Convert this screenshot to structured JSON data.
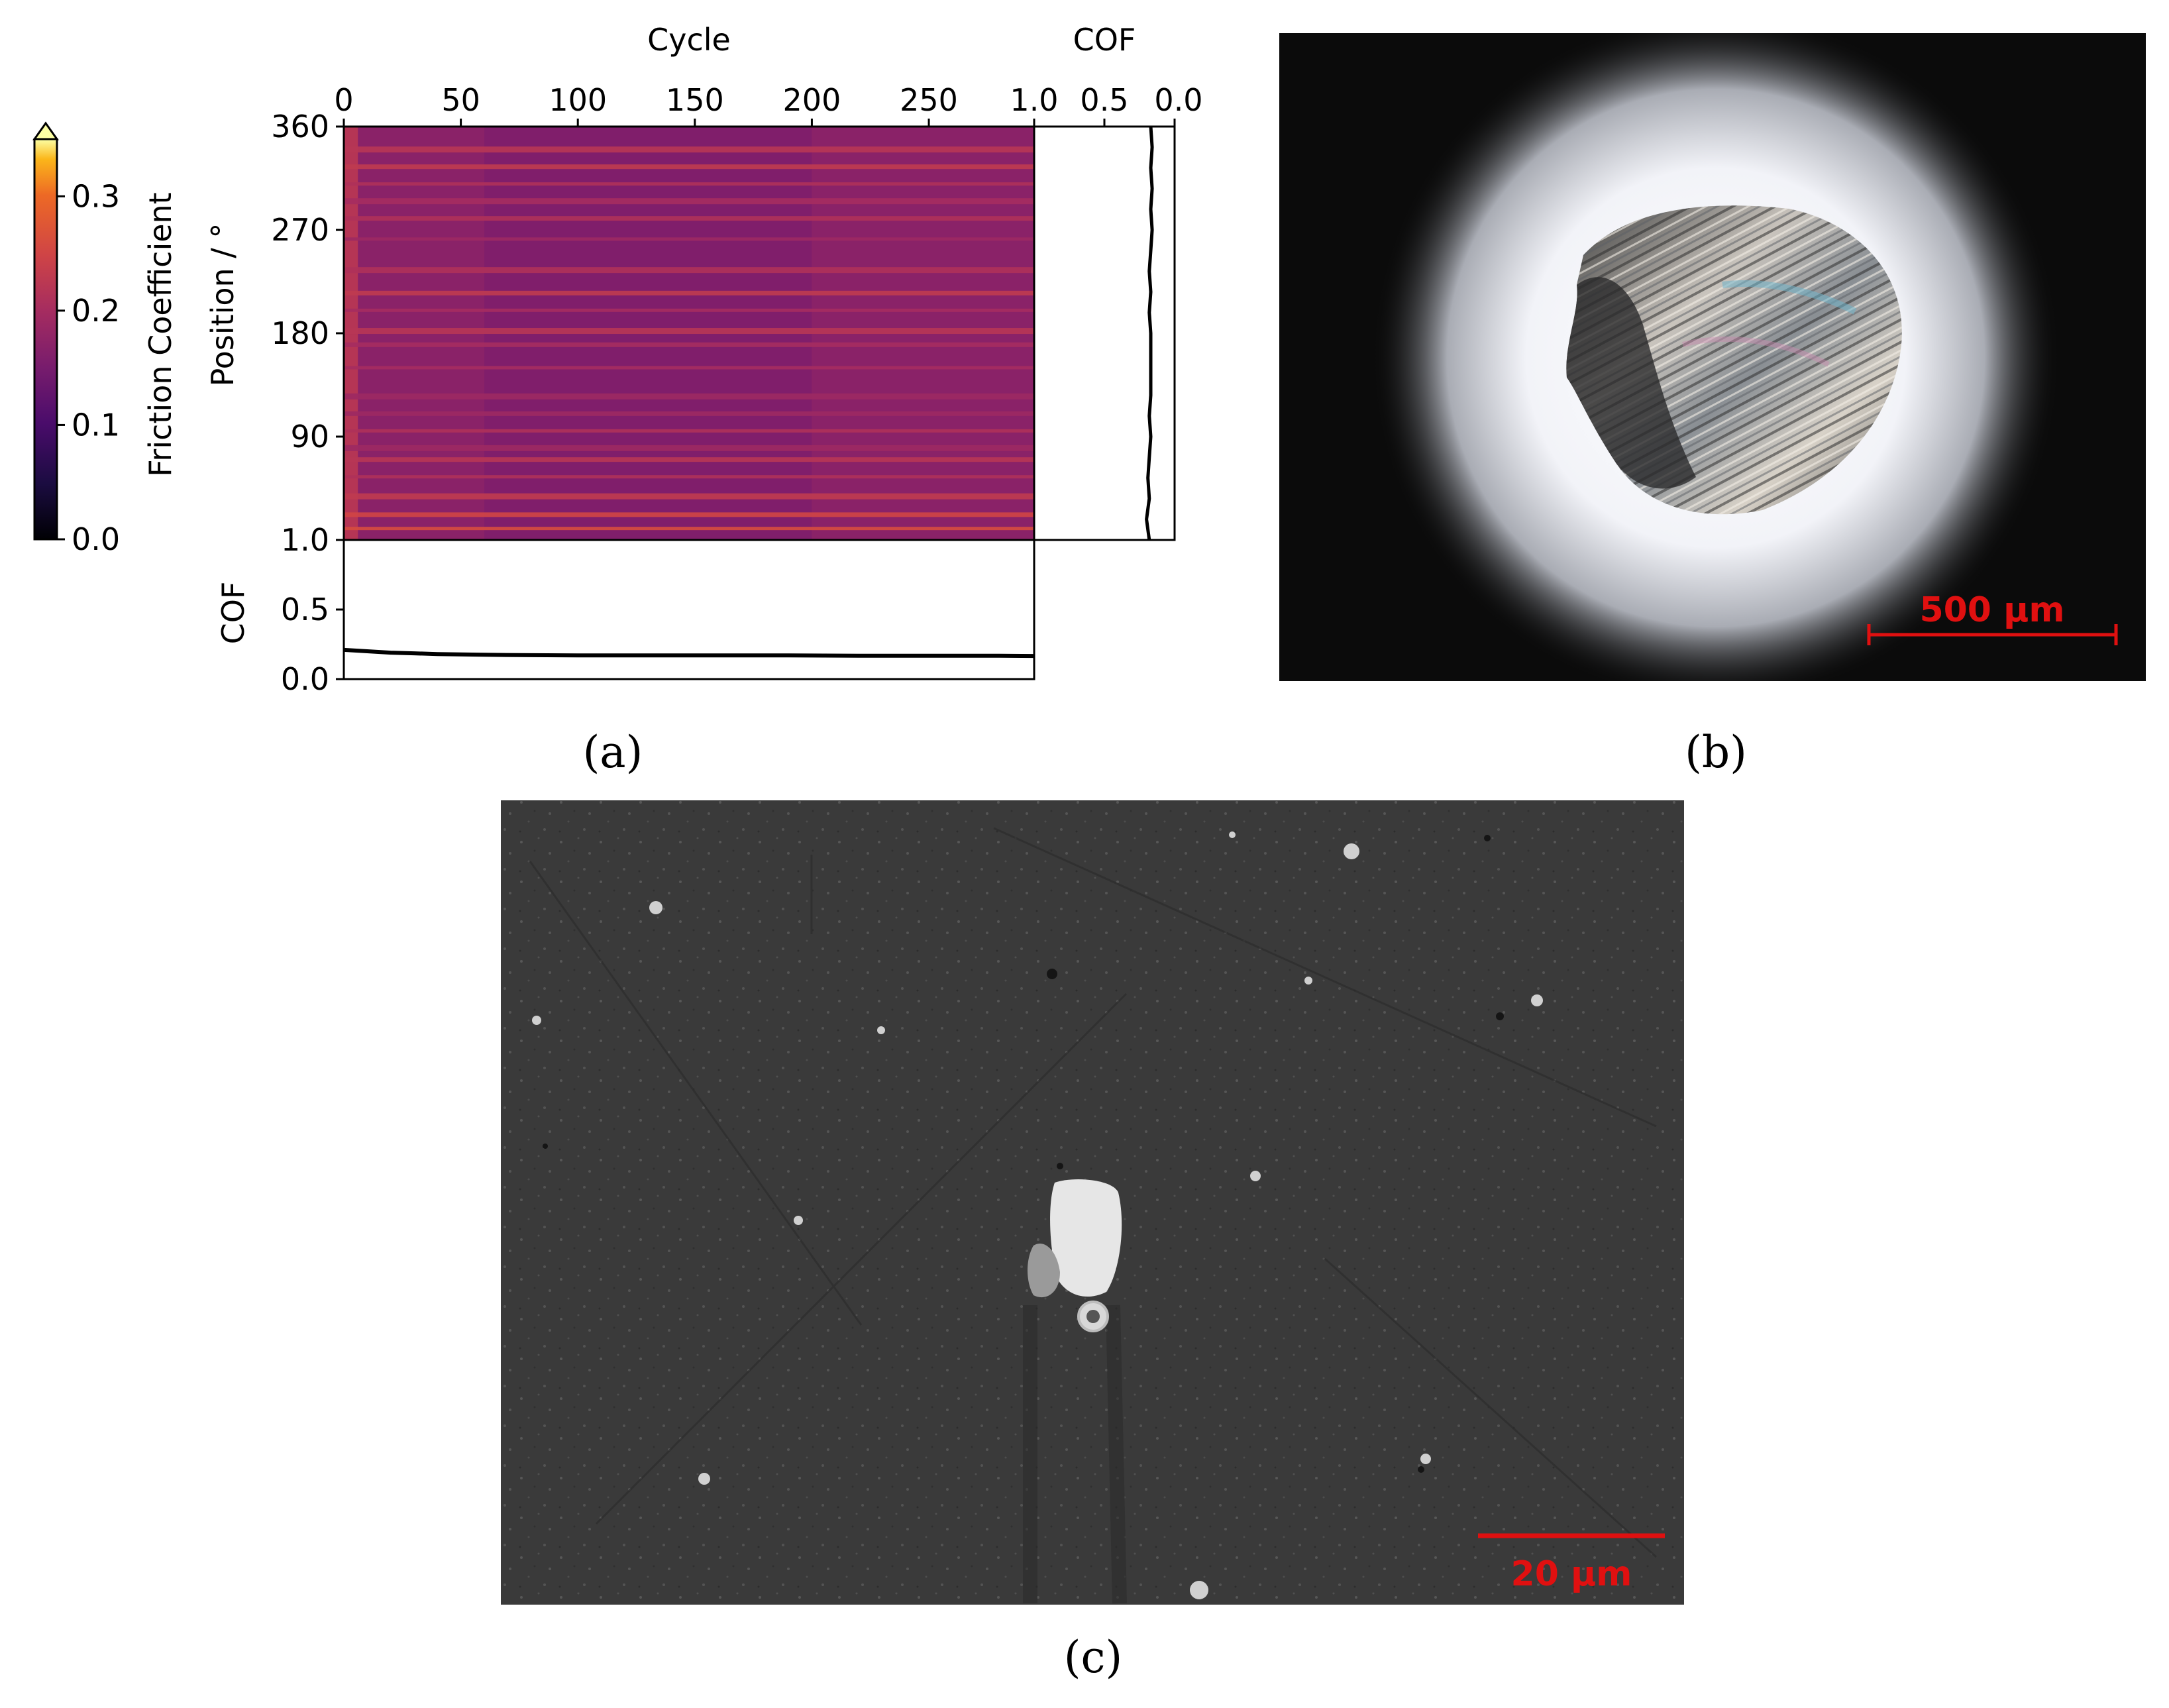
{
  "panels": {
    "a": {
      "label": "(a)"
    },
    "b": {
      "label": "(b)",
      "scalebar": {
        "text": "500 µm"
      }
    },
    "c": {
      "label": "(c)",
      "scalebar": {
        "text": "20 µm"
      }
    }
  },
  "colors": {
    "heatmap_low": "#410967",
    "heatmap_mid": "#b5367a",
    "heatmap_high": "#fca50a",
    "scalebar_red": "#e01010"
  },
  "chart_data": [
    {
      "type": "heatmap",
      "name": "friction-map",
      "xlabel": "Cycle",
      "ylabel": "Position / °",
      "xlim": [
        0,
        295
      ],
      "ylim": [
        0,
        360
      ],
      "xticks": [
        "0",
        "50",
        "100",
        "150",
        "200",
        "250"
      ],
      "xtick_values": [
        0,
        50,
        100,
        150,
        200,
        250
      ],
      "yticks": [
        "90",
        "180",
        "270",
        "360"
      ],
      "ytick_values": [
        90,
        180,
        270,
        360
      ],
      "colormap": "inferno",
      "colorbar": {
        "label": "Friction Coefficient",
        "range": [
          0.0,
          0.35
        ],
        "ticks": [
          "0.0",
          "0.1",
          "0.2",
          "0.3"
        ],
        "tick_values": [
          0.0,
          0.1,
          0.2,
          0.3
        ],
        "extend": "max"
      },
      "band_positions": [
        10,
        22,
        38,
        55,
        70,
        80,
        95,
        110,
        125,
        150,
        170,
        182,
        200,
        215,
        235,
        262,
        280,
        295,
        310,
        325,
        340
      ],
      "band_values": [
        0.26,
        0.25,
        0.23,
        0.21,
        0.22,
        0.19,
        0.21,
        0.19,
        0.19,
        0.2,
        0.2,
        0.22,
        0.2,
        0.23,
        0.21,
        0.19,
        0.21,
        0.2,
        0.21,
        0.23,
        0.22
      ],
      "base_value": 0.17
    },
    {
      "type": "line",
      "name": "cof-vs-position",
      "xlabel": "COF",
      "xticks": [
        "1.0",
        "0.5",
        "0.0"
      ],
      "xtick_values": [
        1.0,
        0.5,
        0.0
      ],
      "xlim": [
        1.0,
        0.0
      ],
      "ylim": [
        0,
        360
      ],
      "positions": [
        0,
        18,
        36,
        54,
        72,
        90,
        108,
        126,
        144,
        162,
        180,
        198,
        216,
        234,
        252,
        270,
        288,
        306,
        324,
        342,
        360
      ],
      "values": [
        0.18,
        0.2,
        0.18,
        0.19,
        0.18,
        0.17,
        0.18,
        0.17,
        0.17,
        0.17,
        0.17,
        0.18,
        0.17,
        0.18,
        0.17,
        0.16,
        0.17,
        0.16,
        0.17,
        0.16,
        0.17
      ]
    },
    {
      "type": "line",
      "name": "cof-vs-cycle",
      "ylabel": "COF",
      "yticks": [
        "0.0",
        "0.5",
        "1.0"
      ],
      "ytick_values": [
        0.0,
        0.5,
        1.0
      ],
      "ylim": [
        0.0,
        1.0
      ],
      "xlim": [
        0,
        295
      ],
      "x": [
        0,
        10,
        20,
        30,
        40,
        60,
        80,
        100,
        130,
        160,
        190,
        220,
        250,
        280,
        295
      ],
      "values": [
        0.21,
        0.2,
        0.19,
        0.185,
        0.18,
        0.175,
        0.172,
        0.17,
        0.17,
        0.17,
        0.17,
        0.168,
        0.168,
        0.168,
        0.166
      ]
    }
  ]
}
